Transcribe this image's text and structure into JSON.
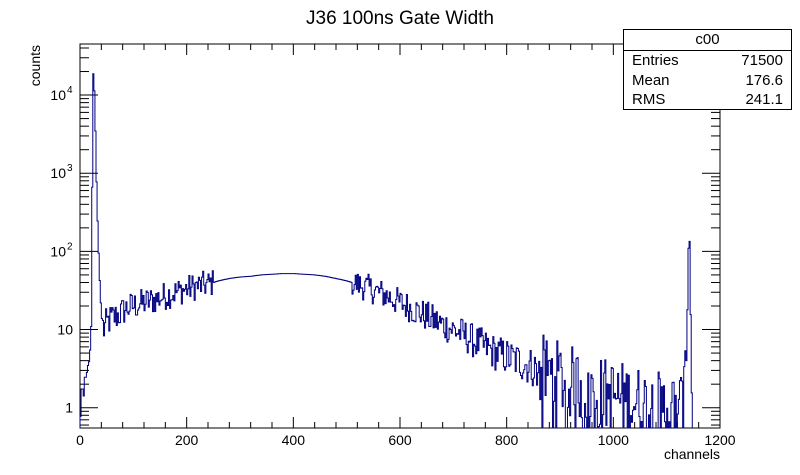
{
  "chart_data": {
    "type": "histogram",
    "title": "J36 100ns Gate Width",
    "xlabel": "channels",
    "ylabel": "counts",
    "xlim": [
      0,
      1200
    ],
    "ylim": [
      0.55,
      45000
    ],
    "y_scale": "log",
    "x_ticks": [
      0,
      200,
      400,
      600,
      800,
      1000,
      1200
    ],
    "y_ticks": [
      {
        "value": 1,
        "label": "1"
      },
      {
        "value": 10,
        "label": "10"
      },
      {
        "value": 100,
        "label": "10",
        "exp": "2"
      },
      {
        "value": 1000,
        "label": "10",
        "exp": "3"
      },
      {
        "value": 10000,
        "label": "10",
        "exp": "4"
      }
    ],
    "line_color": "#000080",
    "series": [
      {
        "bin_width": 2,
        "points": [
          [
            0,
            0.6
          ],
          [
            2,
            1
          ],
          [
            4,
            3
          ],
          [
            6,
            1
          ],
          [
            8,
            2
          ],
          [
            10,
            3
          ],
          [
            12,
            2
          ],
          [
            14,
            4
          ],
          [
            16,
            3
          ],
          [
            18,
            5
          ],
          [
            20,
            6
          ],
          [
            22,
            20
          ],
          [
            24,
            22000
          ],
          [
            26,
            16000
          ],
          [
            28,
            8000
          ],
          [
            30,
            1500
          ],
          [
            32,
            400
          ],
          [
            34,
            150
          ],
          [
            36,
            60
          ],
          [
            38,
            30
          ],
          [
            40,
            16
          ],
          [
            42,
            12
          ],
          [
            45,
            10
          ],
          [
            50,
            12
          ],
          [
            60,
            14
          ],
          [
            70,
            15
          ],
          [
            80,
            17
          ],
          [
            90,
            19
          ],
          [
            100,
            20
          ],
          [
            120,
            22
          ],
          [
            140,
            24
          ],
          [
            160,
            27
          ],
          [
            180,
            30
          ],
          [
            200,
            33
          ],
          [
            220,
            36
          ],
          [
            240,
            38
          ],
          [
            260,
            42
          ],
          [
            280,
            45
          ],
          [
            300,
            47
          ],
          [
            320,
            48
          ],
          [
            340,
            50
          ],
          [
            360,
            51
          ],
          [
            380,
            52
          ],
          [
            400,
            52
          ],
          [
            420,
            51
          ],
          [
            440,
            50
          ],
          [
            460,
            48
          ],
          [
            480,
            45
          ],
          [
            500,
            42
          ],
          [
            520,
            38
          ],
          [
            540,
            34
          ],
          [
            560,
            30
          ],
          [
            580,
            26
          ],
          [
            600,
            22
          ],
          [
            620,
            19
          ],
          [
            640,
            16
          ],
          [
            660,
            13.5
          ],
          [
            680,
            11.5
          ],
          [
            700,
            10
          ],
          [
            720,
            8.5
          ],
          [
            740,
            7
          ],
          [
            760,
            6
          ],
          [
            780,
            5
          ],
          [
            800,
            4.5
          ],
          [
            820,
            4
          ],
          [
            840,
            3.5
          ],
          [
            860,
            3
          ],
          [
            880,
            2.7
          ],
          [
            900,
            2.4
          ],
          [
            920,
            2.1
          ],
          [
            940,
            1.9
          ],
          [
            960,
            1.7
          ],
          [
            980,
            1.5
          ],
          [
            1000,
            1.4
          ],
          [
            1020,
            1.3
          ],
          [
            1040,
            1.2
          ],
          [
            1060,
            1.1
          ],
          [
            1080,
            1
          ],
          [
            1100,
            1
          ],
          [
            1120,
            1
          ],
          [
            1130,
            1
          ],
          [
            1136,
            2
          ],
          [
            1138,
            8
          ],
          [
            1140,
            40
          ],
          [
            1142,
            300
          ],
          [
            1144,
            60
          ],
          [
            1146,
            4
          ],
          [
            1148,
            0.6
          ]
        ]
      }
    ],
    "stats": {
      "name": "c00",
      "entries_label": "Entries",
      "entries": "71500",
      "mean_label": "Mean",
      "mean": "176.6",
      "rms_label": "RMS",
      "rms": "241.1"
    }
  }
}
